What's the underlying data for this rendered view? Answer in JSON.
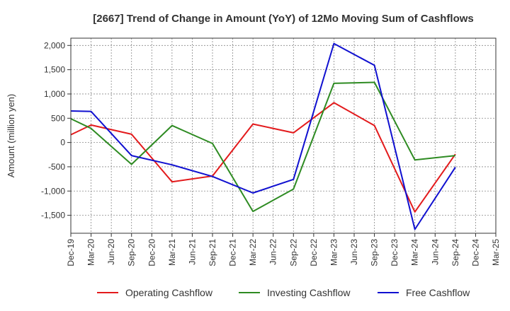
{
  "chart_data": {
    "type": "line",
    "title": "[2667]  Trend of Change in Amount (YoY) of 12Mo Moving Sum of Cashflows",
    "xlabel": "",
    "ylabel": "Amount (million yen)",
    "ylim": [
      -1870,
      2150
    ],
    "yticks": [
      2000,
      1500,
      1000,
      500,
      0,
      -500,
      -1000,
      -1500
    ],
    "ytick_labels": [
      "2,000",
      "1,500",
      "1,000",
      "500",
      "0",
      "-500",
      "-1,000",
      "-1,500"
    ],
    "categories": [
      "Dec-19",
      "Mar-20",
      "Jun-20",
      "Sep-20",
      "Dec-20",
      "Mar-21",
      "Jun-21",
      "Sep-21",
      "Dec-21",
      "Mar-22",
      "Jun-22",
      "Sep-22",
      "Dec-22",
      "Mar-23",
      "Jun-23",
      "Sep-23",
      "Dec-23",
      "Mar-24",
      "Jun-24",
      "Sep-24",
      "Dec-24",
      "Mar-25"
    ],
    "grid": true,
    "legend_position": "bottom",
    "series": [
      {
        "name": "Operating Cashflow",
        "color": "#e31a1c",
        "values": [
          160,
          360,
          null,
          170,
          null,
          -810,
          null,
          -690,
          null,
          380,
          null,
          200,
          null,
          820,
          null,
          350,
          null,
          -1430,
          null,
          -240,
          null,
          null
        ]
      },
      {
        "name": "Investing Cashflow",
        "color": "#2e8b22",
        "values": [
          490,
          290,
          null,
          -450,
          null,
          350,
          null,
          -20,
          null,
          -1420,
          null,
          -960,
          null,
          1220,
          null,
          1240,
          null,
          -360,
          null,
          -270,
          null,
          null
        ]
      },
      {
        "name": "Free Cashflow",
        "color": "#1010d0",
        "values": [
          650,
          640,
          null,
          -270,
          null,
          -460,
          null,
          -700,
          null,
          -1040,
          null,
          -760,
          null,
          2040,
          null,
          1590,
          null,
          -1790,
          null,
          -510,
          null,
          null
        ]
      }
    ]
  }
}
